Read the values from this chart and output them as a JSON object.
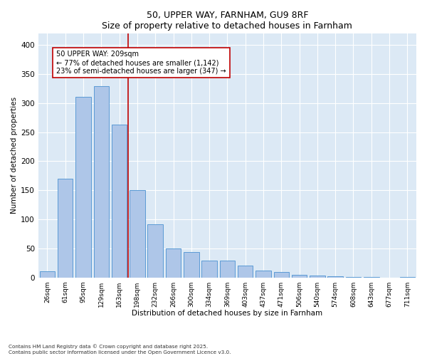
{
  "title1": "50, UPPER WAY, FARNHAM, GU9 8RF",
  "title2": "Size of property relative to detached houses in Farnham",
  "xlabel": "Distribution of detached houses by size in Farnham",
  "ylabel": "Number of detached properties",
  "categories": [
    "26sqm",
    "61sqm",
    "95sqm",
    "129sqm",
    "163sqm",
    "198sqm",
    "232sqm",
    "266sqm",
    "300sqm",
    "334sqm",
    "369sqm",
    "403sqm",
    "437sqm",
    "471sqm",
    "506sqm",
    "540sqm",
    "574sqm",
    "608sqm",
    "643sqm",
    "677sqm",
    "711sqm"
  ],
  "values": [
    11,
    170,
    311,
    329,
    263,
    150,
    91,
    50,
    44,
    29,
    29,
    20,
    12,
    9,
    4,
    3,
    2,
    1,
    1,
    0,
    1
  ],
  "bar_color": "#aec6e8",
  "bar_edge_color": "#5b9bd5",
  "annotation_text_line1": "50 UPPER WAY: 209sqm",
  "annotation_text_line2": "← 77% of detached houses are smaller (1,142)",
  "annotation_text_line3": "23% of semi-detached houses are larger (347) →",
  "vline_color": "#c00000",
  "annotation_box_edge": "#c00000",
  "vline_x": 4.5,
  "ylim": [
    0,
    420
  ],
  "yticks": [
    0,
    50,
    100,
    150,
    200,
    250,
    300,
    350,
    400
  ],
  "background_color": "#dce9f5",
  "footnote1": "Contains HM Land Registry data © Crown copyright and database right 2025.",
  "footnote2": "Contains public sector information licensed under the Open Government Licence v3.0."
}
